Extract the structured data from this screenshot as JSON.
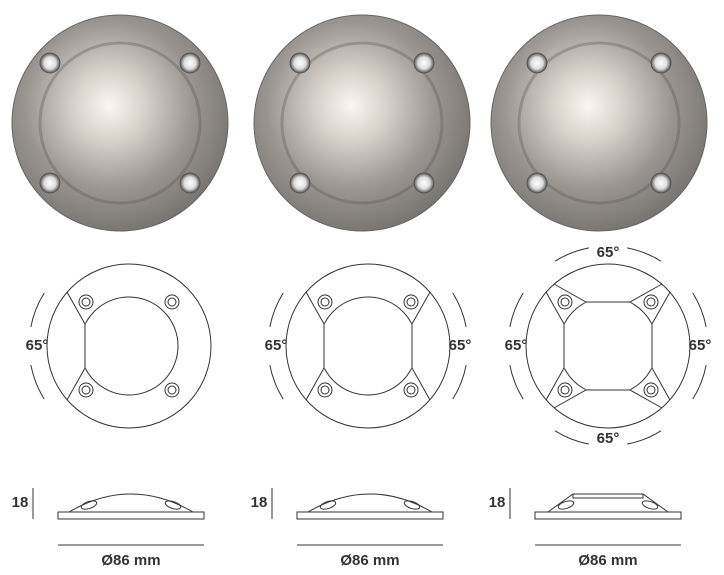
{
  "products": [
    {
      "angles": [
        "65°"
      ],
      "height": "18",
      "diameter": "Ø86 mm"
    },
    {
      "angles": [
        "65°",
        "65°"
      ],
      "height": "18",
      "diameter": "Ø86 mm"
    },
    {
      "angles": [
        "65°",
        "65°",
        "65°",
        "65°"
      ],
      "height": "18",
      "diameter": "Ø86 mm"
    }
  ]
}
